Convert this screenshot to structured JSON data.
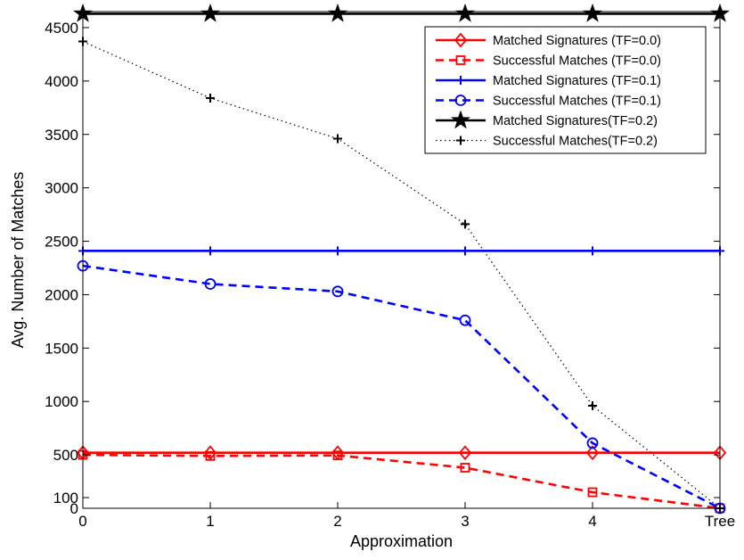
{
  "chart_data": {
    "type": "line",
    "title": "",
    "xlabel": "Approximation",
    "ylabel": "Avg. Number of Matches",
    "categories": [
      "0",
      "1",
      "2",
      "3",
      "4",
      "Tree"
    ],
    "ylim": [
      0,
      4650
    ],
    "yticks": [
      0,
      100,
      500,
      1000,
      1500,
      2000,
      2500,
      3000,
      3500,
      4000,
      4500
    ],
    "grid": false,
    "legend_position": "top-right",
    "series": [
      {
        "name": "Matched Signatures (TF=0.0)",
        "color": "#ff0000",
        "line": "solid",
        "marker": "diamond",
        "values": [
          520,
          520,
          520,
          520,
          520,
          520
        ]
      },
      {
        "name": "Successful Matches (TF=0.0)",
        "color": "#ff0000",
        "line": "dashed",
        "marker": "square",
        "values": [
          500,
          490,
          495,
          380,
          150,
          0
        ]
      },
      {
        "name": "Matched Signatures (TF=0.1)",
        "color": "#0000ff",
        "line": "solid",
        "marker": "plus",
        "values": [
          2410,
          2410,
          2410,
          2410,
          2410,
          2410
        ]
      },
      {
        "name": "Successful Matches (TF=0.1)",
        "color": "#0000ff",
        "line": "dashed",
        "marker": "circle",
        "values": [
          2270,
          2100,
          2030,
          1760,
          610,
          0
        ]
      },
      {
        "name": "Matched Signatures(TF=0.2)",
        "color": "#000000",
        "line": "solid",
        "marker": "star",
        "values": [
          4630,
          4630,
          4630,
          4630,
          4630,
          4630
        ]
      },
      {
        "name": "Successful Matches(TF=0.2)",
        "color": "#000000",
        "line": "dotted",
        "marker": "plus",
        "values": [
          4370,
          3840,
          3460,
          2660,
          960,
          0
        ]
      }
    ]
  }
}
